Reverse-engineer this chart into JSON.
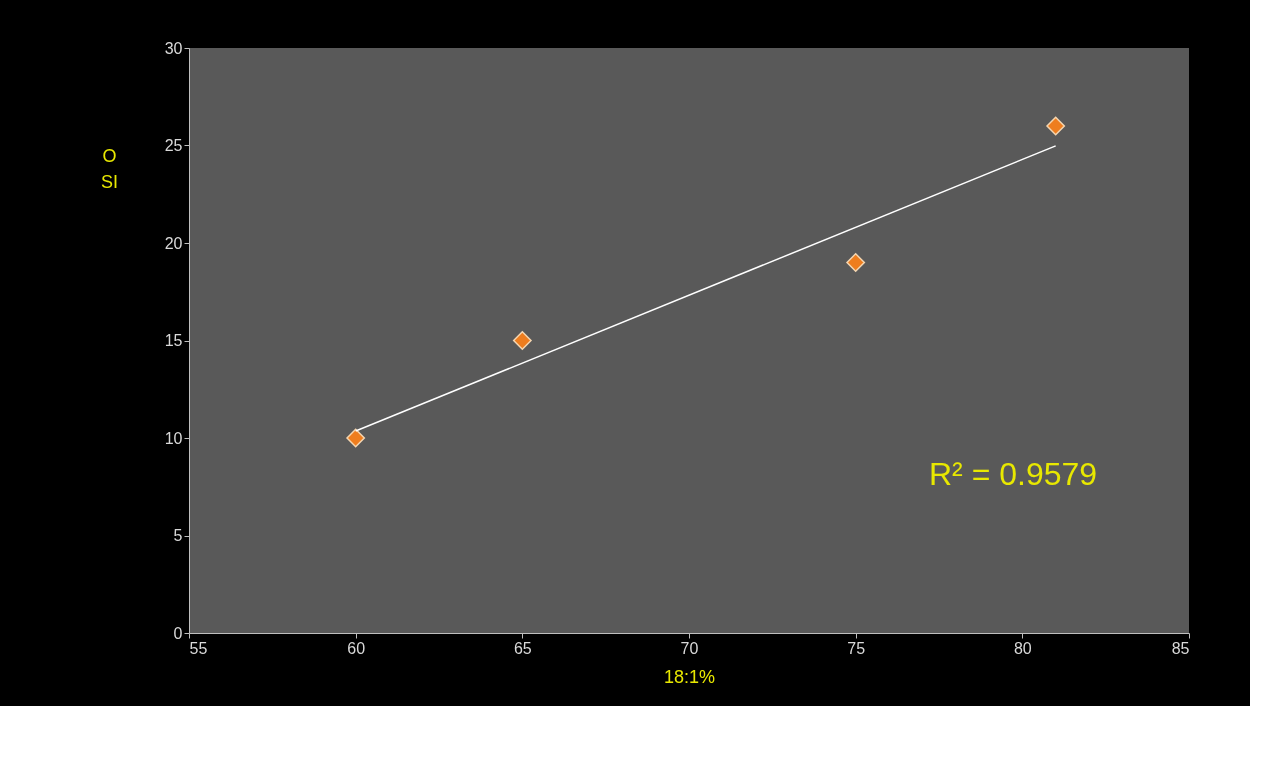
{
  "chart_data": {
    "type": "scatter",
    "xlabel": "18:1%",
    "ylabel": "O SI",
    "annotations": [
      "R² = 0.9579"
    ],
    "series": [
      {
        "color": "#ee7d1e",
        "x": [
          60,
          65,
          75,
          81
        ],
        "values": [
          10,
          15,
          19,
          26
        ],
        "marker": "diamond"
      },
      {
        "type": "line",
        "color": "#ffffff",
        "x": [
          60,
          81
        ],
        "values": [
          10.36,
          24.98
        ]
      }
    ],
    "xlim": [
      55,
      85
    ],
    "xticks": [
      55,
      60,
      65,
      70,
      75,
      80,
      85
    ],
    "ylim": [
      0,
      30
    ],
    "yticks": [
      0,
      5,
      10,
      15,
      20,
      25,
      30
    ],
    "grid": false
  }
}
